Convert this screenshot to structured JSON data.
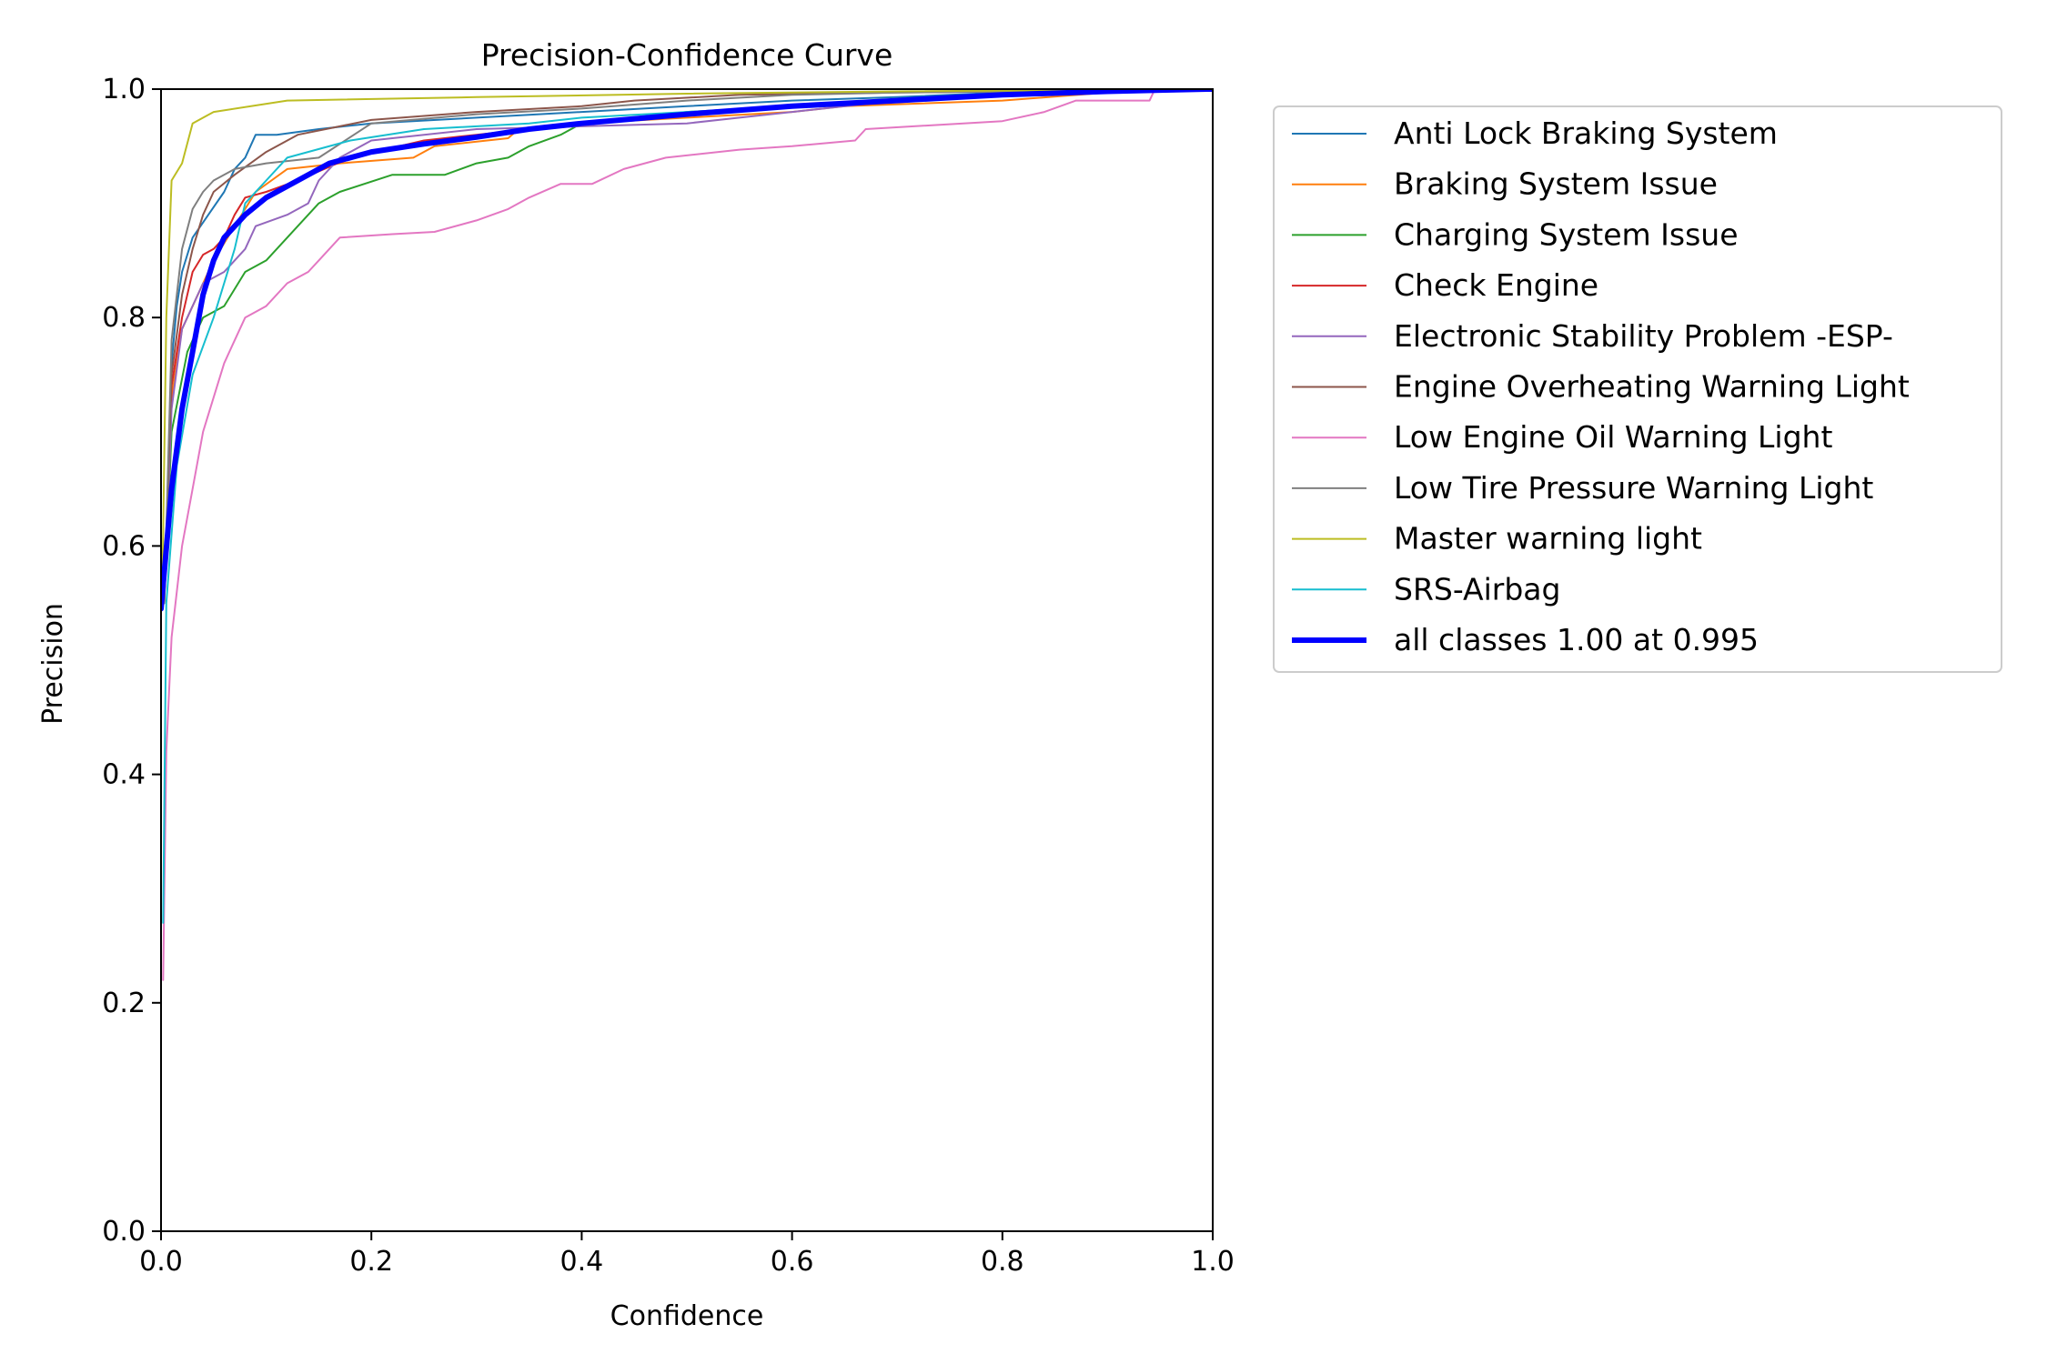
{
  "chart_data": {
    "type": "line",
    "title": "Precision-Confidence Curve",
    "xlabel": "Confidence",
    "ylabel": "Precision",
    "xlim": [
      0,
      1
    ],
    "ylim": [
      0,
      1
    ],
    "xticks": [
      "0.0",
      "0.2",
      "0.4",
      "0.6",
      "0.8",
      "1.0"
    ],
    "yticks": [
      "0.0",
      "0.2",
      "0.4",
      "0.6",
      "0.8",
      "1.0"
    ],
    "legend_position": "outside-right",
    "grid": false,
    "series": [
      {
        "name": "Anti Lock Braking System",
        "color": "#1f77b4",
        "width": 2,
        "points": [
          [
            0.003,
            0.55
          ],
          [
            0.01,
            0.76
          ],
          [
            0.015,
            0.81
          ],
          [
            0.02,
            0.84
          ],
          [
            0.03,
            0.87
          ],
          [
            0.045,
            0.89
          ],
          [
            0.06,
            0.91
          ],
          [
            0.07,
            0.93
          ],
          [
            0.08,
            0.94
          ],
          [
            0.09,
            0.96
          ],
          [
            0.11,
            0.96
          ],
          [
            0.15,
            0.965
          ],
          [
            0.2,
            0.97
          ],
          [
            0.3,
            0.975
          ],
          [
            0.4,
            0.98
          ],
          [
            0.5,
            0.985
          ],
          [
            0.6,
            0.99
          ],
          [
            0.7,
            0.993
          ],
          [
            0.8,
            0.997
          ],
          [
            1.0,
            1.0
          ]
        ]
      },
      {
        "name": "Braking System Issue",
        "color": "#ff7f0e",
        "width": 2,
        "points": [
          [
            0.003,
            0.55
          ],
          [
            0.01,
            0.73
          ],
          [
            0.02,
            0.79
          ],
          [
            0.035,
            0.82
          ],
          [
            0.05,
            0.85
          ],
          [
            0.07,
            0.88
          ],
          [
            0.09,
            0.91
          ],
          [
            0.12,
            0.93
          ],
          [
            0.17,
            0.935
          ],
          [
            0.24,
            0.94
          ],
          [
            0.26,
            0.95
          ],
          [
            0.33,
            0.957
          ],
          [
            0.34,
            0.965
          ],
          [
            0.4,
            0.97
          ],
          [
            0.5,
            0.975
          ],
          [
            0.6,
            0.98
          ],
          [
            0.65,
            0.985
          ],
          [
            0.8,
            0.99
          ],
          [
            0.9,
            0.997
          ],
          [
            1.0,
            1.0
          ]
        ]
      },
      {
        "name": "Charging System Issue",
        "color": "#2ca02c",
        "width": 2,
        "points": [
          [
            0.003,
            0.55
          ],
          [
            0.01,
            0.7
          ],
          [
            0.025,
            0.77
          ],
          [
            0.04,
            0.8
          ],
          [
            0.06,
            0.81
          ],
          [
            0.08,
            0.84
          ],
          [
            0.1,
            0.85
          ],
          [
            0.12,
            0.87
          ],
          [
            0.15,
            0.9
          ],
          [
            0.17,
            0.91
          ],
          [
            0.22,
            0.925
          ],
          [
            0.27,
            0.925
          ],
          [
            0.3,
            0.935
          ],
          [
            0.33,
            0.94
          ],
          [
            0.35,
            0.95
          ],
          [
            0.38,
            0.96
          ],
          [
            0.4,
            0.97
          ],
          [
            0.45,
            0.975
          ],
          [
            0.5,
            0.98
          ],
          [
            0.6,
            0.985
          ],
          [
            0.7,
            0.99
          ],
          [
            0.8,
            0.995
          ],
          [
            1.0,
            1.0
          ]
        ]
      },
      {
        "name": "Check Engine",
        "color": "#d62728",
        "width": 2,
        "points": [
          [
            0.003,
            0.55
          ],
          [
            0.01,
            0.74
          ],
          [
            0.02,
            0.8
          ],
          [
            0.03,
            0.84
          ],
          [
            0.04,
            0.855
          ],
          [
            0.05,
            0.86
          ],
          [
            0.06,
            0.87
          ],
          [
            0.07,
            0.89
          ],
          [
            0.08,
            0.905
          ],
          [
            0.1,
            0.91
          ],
          [
            0.13,
            0.92
          ],
          [
            0.18,
            0.94
          ],
          [
            0.25,
            0.955
          ],
          [
            0.3,
            0.96
          ],
          [
            0.4,
            0.97
          ],
          [
            0.5,
            0.978
          ],
          [
            0.6,
            0.985
          ],
          [
            0.7,
            0.99
          ],
          [
            0.8,
            0.995
          ],
          [
            1.0,
            1.0
          ]
        ]
      },
      {
        "name": "Electronic Stability Problem -ESP-",
        "color": "#9467bd",
        "width": 2,
        "points": [
          [
            0.003,
            0.55
          ],
          [
            0.01,
            0.72
          ],
          [
            0.02,
            0.79
          ],
          [
            0.04,
            0.83
          ],
          [
            0.06,
            0.84
          ],
          [
            0.08,
            0.86
          ],
          [
            0.09,
            0.88
          ],
          [
            0.12,
            0.89
          ],
          [
            0.14,
            0.9
          ],
          [
            0.15,
            0.92
          ],
          [
            0.17,
            0.94
          ],
          [
            0.2,
            0.955
          ],
          [
            0.3,
            0.965
          ],
          [
            0.5,
            0.97
          ],
          [
            0.55,
            0.975
          ],
          [
            0.6,
            0.98
          ],
          [
            0.7,
            0.99
          ],
          [
            0.8,
            0.995
          ],
          [
            1.0,
            1.0
          ]
        ]
      },
      {
        "name": "Engine Overheating Warning Light",
        "color": "#8c564b",
        "width": 2,
        "points": [
          [
            0.003,
            0.55
          ],
          [
            0.01,
            0.75
          ],
          [
            0.02,
            0.82
          ],
          [
            0.03,
            0.86
          ],
          [
            0.04,
            0.89
          ],
          [
            0.05,
            0.91
          ],
          [
            0.07,
            0.925
          ],
          [
            0.1,
            0.945
          ],
          [
            0.13,
            0.96
          ],
          [
            0.2,
            0.973
          ],
          [
            0.3,
            0.98
          ],
          [
            0.4,
            0.985
          ],
          [
            0.45,
            0.99
          ],
          [
            0.55,
            0.995
          ],
          [
            0.7,
            0.997
          ],
          [
            1.0,
            1.0
          ]
        ]
      },
      {
        "name": "Low Engine Oil Warning Light",
        "color": "#e377c2",
        "width": 2,
        "points": [
          [
            0.002,
            0.22
          ],
          [
            0.005,
            0.42
          ],
          [
            0.01,
            0.52
          ],
          [
            0.02,
            0.6
          ],
          [
            0.03,
            0.65
          ],
          [
            0.04,
            0.7
          ],
          [
            0.05,
            0.73
          ],
          [
            0.06,
            0.76
          ],
          [
            0.07,
            0.78
          ],
          [
            0.08,
            0.8
          ],
          [
            0.1,
            0.81
          ],
          [
            0.12,
            0.83
          ],
          [
            0.14,
            0.84
          ],
          [
            0.15,
            0.85
          ],
          [
            0.17,
            0.87
          ],
          [
            0.22,
            0.873
          ],
          [
            0.26,
            0.875
          ],
          [
            0.3,
            0.885
          ],
          [
            0.33,
            0.895
          ],
          [
            0.35,
            0.905
          ],
          [
            0.38,
            0.917
          ],
          [
            0.41,
            0.917
          ],
          [
            0.44,
            0.93
          ],
          [
            0.48,
            0.94
          ],
          [
            0.55,
            0.947
          ],
          [
            0.6,
            0.95
          ],
          [
            0.66,
            0.955
          ],
          [
            0.67,
            0.965
          ],
          [
            0.8,
            0.972
          ],
          [
            0.84,
            0.98
          ],
          [
            0.87,
            0.99
          ],
          [
            0.94,
            0.99
          ],
          [
            0.945,
            1.0
          ],
          [
            1.0,
            1.0
          ]
        ]
      },
      {
        "name": "Low Tire Pressure Warning Light",
        "color": "#7f7f7f",
        "width": 2,
        "points": [
          [
            0.003,
            0.55
          ],
          [
            0.01,
            0.78
          ],
          [
            0.02,
            0.86
          ],
          [
            0.03,
            0.895
          ],
          [
            0.04,
            0.91
          ],
          [
            0.05,
            0.92
          ],
          [
            0.07,
            0.93
          ],
          [
            0.1,
            0.935
          ],
          [
            0.15,
            0.94
          ],
          [
            0.2,
            0.97
          ],
          [
            0.3,
            0.978
          ],
          [
            0.4,
            0.983
          ],
          [
            0.5,
            0.99
          ],
          [
            0.6,
            0.995
          ],
          [
            0.7,
            0.997
          ],
          [
            1.0,
            1.0
          ]
        ]
      },
      {
        "name": "Master warning light",
        "color": "#bcbd22",
        "width": 2,
        "points": [
          [
            0.001,
            0.55
          ],
          [
            0.005,
            0.8
          ],
          [
            0.01,
            0.92
          ],
          [
            0.02,
            0.935
          ],
          [
            0.03,
            0.97
          ],
          [
            0.05,
            0.98
          ],
          [
            0.12,
            0.99
          ],
          [
            0.3,
            0.993
          ],
          [
            0.5,
            0.996
          ],
          [
            0.7,
            0.998
          ],
          [
            1.0,
            1.0
          ]
        ]
      },
      {
        "name": "SRS-Airbag",
        "color": "#17becf",
        "width": 2,
        "points": [
          [
            0.002,
            0.27
          ],
          [
            0.005,
            0.55
          ],
          [
            0.015,
            0.67
          ],
          [
            0.03,
            0.75
          ],
          [
            0.05,
            0.8
          ],
          [
            0.07,
            0.86
          ],
          [
            0.08,
            0.9
          ],
          [
            0.1,
            0.92
          ],
          [
            0.12,
            0.94
          ],
          [
            0.18,
            0.955
          ],
          [
            0.25,
            0.965
          ],
          [
            0.35,
            0.97
          ],
          [
            0.4,
            0.975
          ],
          [
            0.5,
            0.98
          ],
          [
            0.6,
            0.985
          ],
          [
            0.7,
            0.99
          ],
          [
            0.8,
            0.994
          ],
          [
            1.0,
            1.0
          ]
        ]
      },
      {
        "name": "all classes 1.00 at 0.995",
        "color": "#0000ff",
        "width": 6,
        "points": [
          [
            0,
            0.545
          ],
          [
            0.01,
            0.65
          ],
          [
            0.02,
            0.72
          ],
          [
            0.03,
            0.77
          ],
          [
            0.04,
            0.82
          ],
          [
            0.05,
            0.85
          ],
          [
            0.06,
            0.87
          ],
          [
            0.08,
            0.89
          ],
          [
            0.1,
            0.905
          ],
          [
            0.13,
            0.92
          ],
          [
            0.16,
            0.935
          ],
          [
            0.2,
            0.945
          ],
          [
            0.25,
            0.952
          ],
          [
            0.3,
            0.958
          ],
          [
            0.35,
            0.965
          ],
          [
            0.4,
            0.97
          ],
          [
            0.5,
            0.978
          ],
          [
            0.6,
            0.985
          ],
          [
            0.7,
            0.99
          ],
          [
            0.8,
            0.995
          ],
          [
            0.9,
            0.998
          ],
          [
            0.995,
            1.0
          ],
          [
            1.0,
            1.0
          ]
        ]
      }
    ]
  }
}
